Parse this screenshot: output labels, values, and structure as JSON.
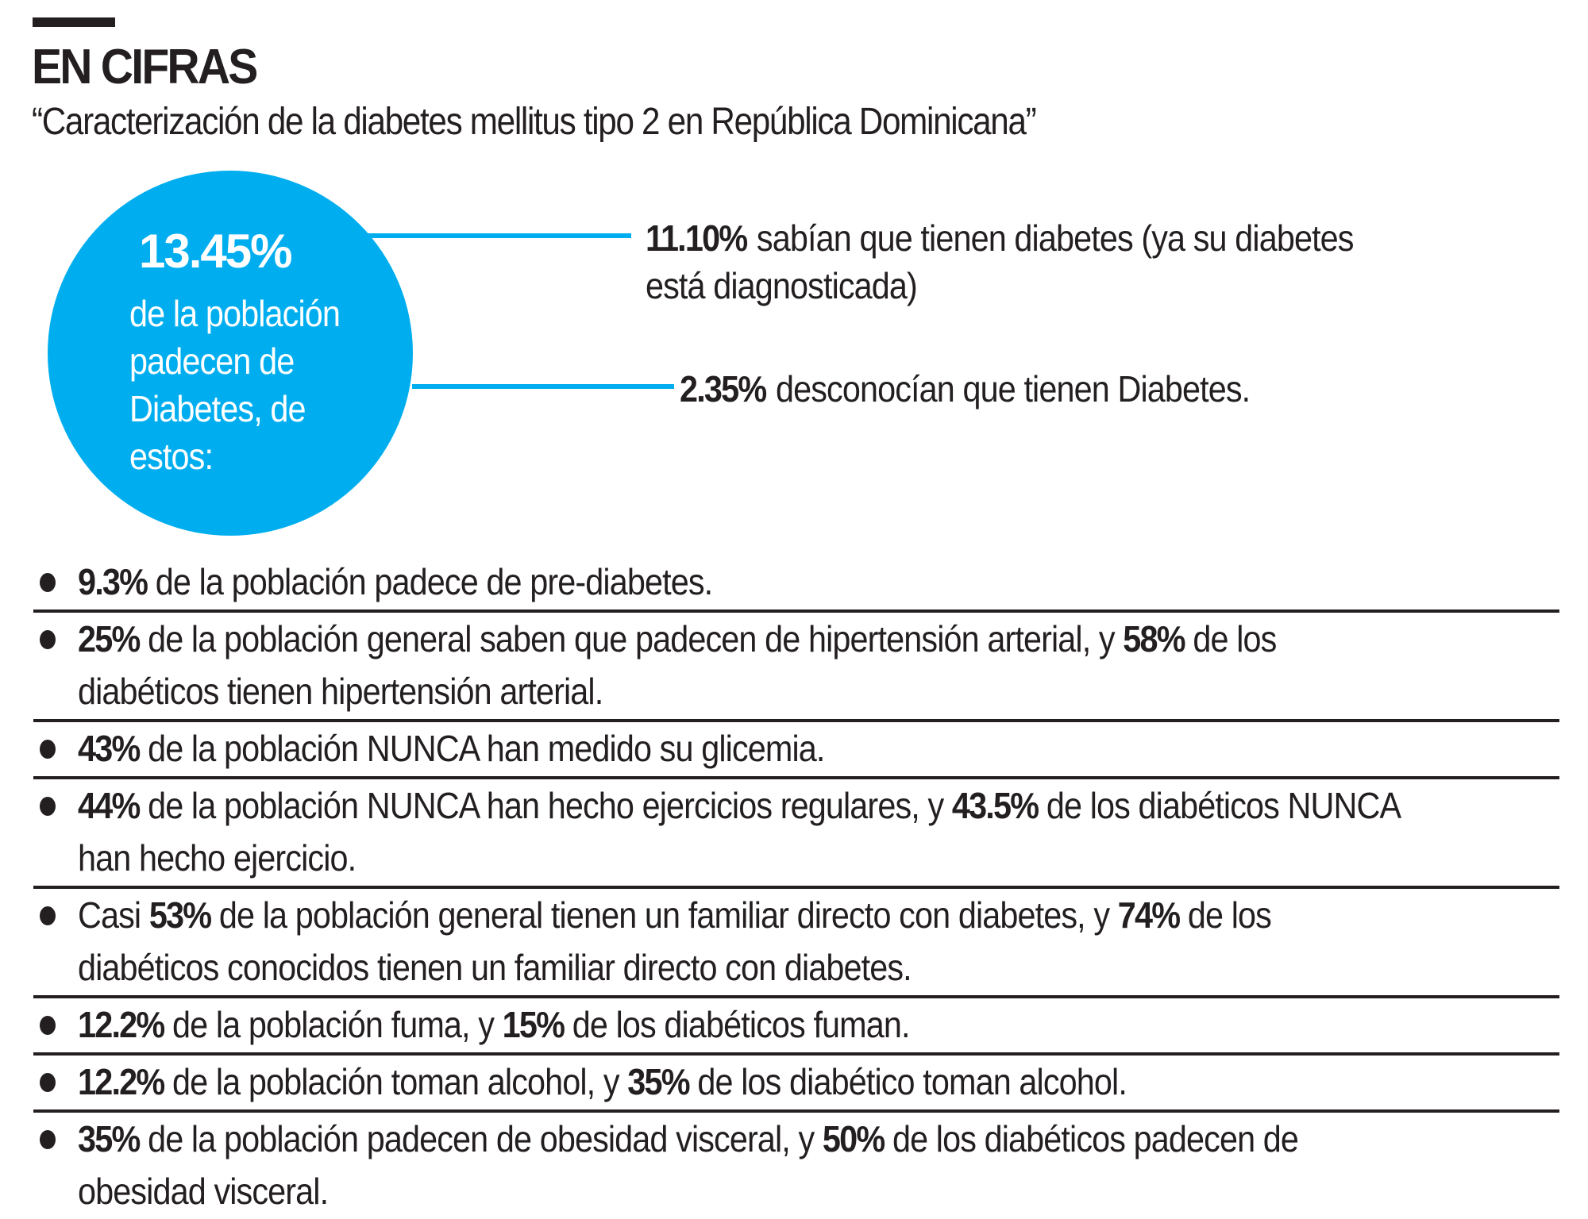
{
  "header": {
    "kicker": "EN CIFRAS",
    "subtitle": "“Caracterización de la diabetes mellitus tipo 2 en República Dominicana”"
  },
  "colors": {
    "accent": "#00aeef",
    "text": "#231f20",
    "background": "#ffffff"
  },
  "circle": {
    "percentage": "13.45%",
    "description": "de la población padecen de Diabetes, de estos:"
  },
  "breakdown": [
    {
      "value": "11.10%",
      "text": "sabían que tienen diabetes (ya su diabetes",
      "text2": "está diagnosticada)"
    },
    {
      "value": "2.35%",
      "text": "desconocían que tienen Diabetes."
    }
  ],
  "facts": [
    {
      "parts": [
        {
          "b": "9.3%"
        },
        {
          "t": " de la población padece de pre-diabetes."
        }
      ]
    },
    {
      "parts": [
        {
          "b": "25%"
        },
        {
          "t": " de la población general  saben que padecen de hipertensión arterial, y "
        },
        {
          "b": "58%"
        },
        {
          "t": " de los diabéticos tienen hipertensión arterial."
        }
      ]
    },
    {
      "parts": [
        {
          "b": "43%"
        },
        {
          "t": " de la población NUNCA han medido  su glicemia."
        }
      ]
    },
    {
      "parts": [
        {
          "b": "44%"
        },
        {
          "t": " de la población NUNCA han hecho ejercicios regulares, y "
        },
        {
          "b": "43.5%"
        },
        {
          "t": " de los diabéticos NUNCA han hecho ejercicio."
        }
      ]
    },
    {
      "parts": [
        {
          "t": "Casi "
        },
        {
          "b": "53%"
        },
        {
          "t": " de la población general tienen un familiar directo con diabetes, y "
        },
        {
          "b": "74%"
        },
        {
          "t": " de los diabéticos conocidos tienen un familiar directo con diabetes."
        }
      ]
    },
    {
      "parts": [
        {
          "b": "12.2%"
        },
        {
          "t": " de la población fuma, y "
        },
        {
          "b": "15%"
        },
        {
          "t": " de los diabéticos fuman."
        }
      ]
    },
    {
      "parts": [
        {
          "b": "12.2%"
        },
        {
          "t": " de la población toman alcohol, y "
        },
        {
          "b": "35%"
        },
        {
          "t": " de los diabético toman alcohol."
        }
      ]
    },
    {
      "parts": [
        {
          "b": "35%"
        },
        {
          "t": " de la población padecen de obesidad visceral, y "
        },
        {
          "b": "50%"
        },
        {
          "t": " de los diabéticos padecen de obesidad visceral."
        }
      ]
    }
  ]
}
